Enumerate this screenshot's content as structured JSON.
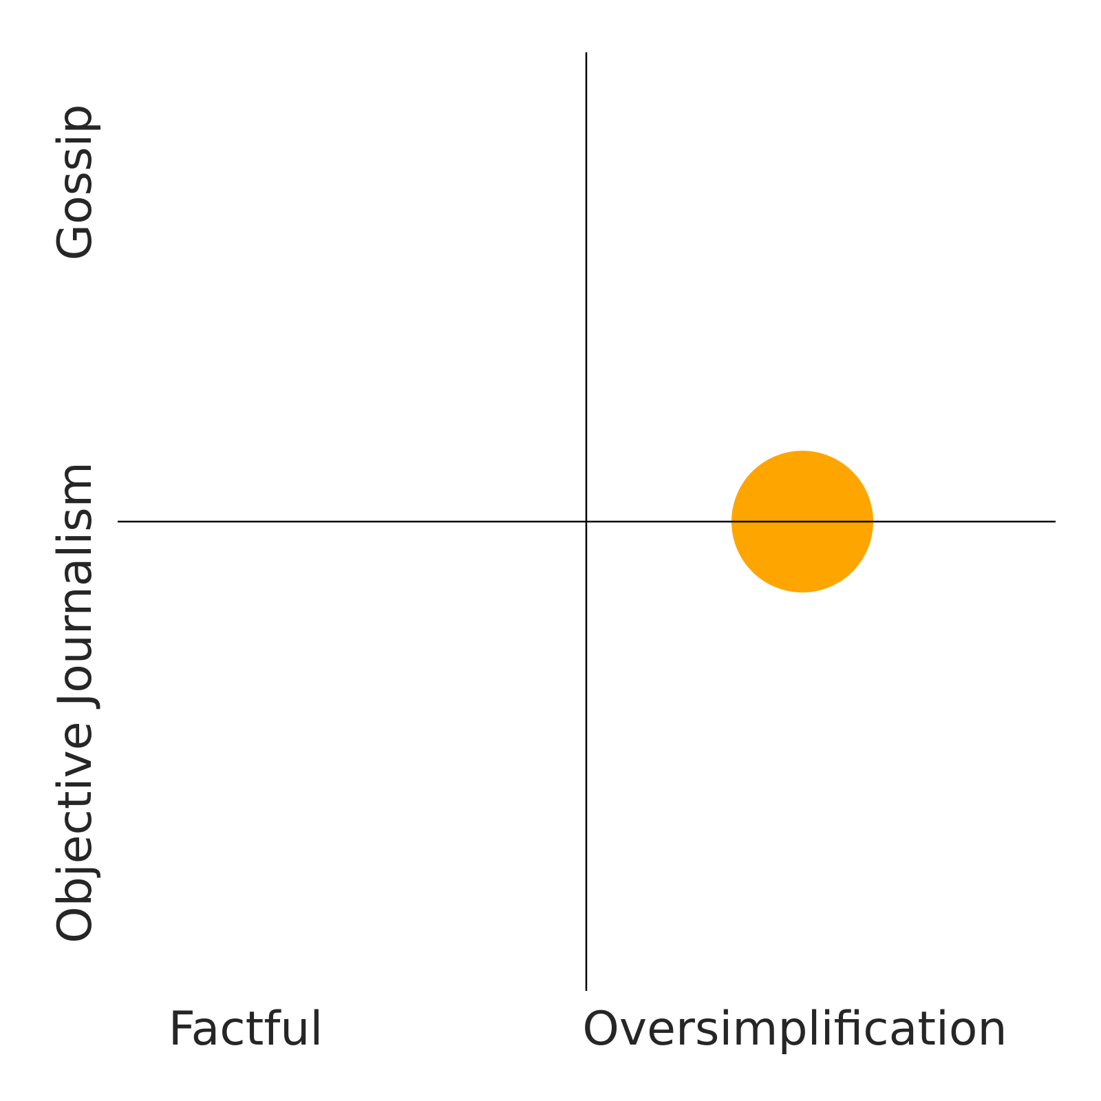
{
  "chart_data": {
    "type": "scatter",
    "title": "",
    "xlim": [
      -1,
      1
    ],
    "ylim": [
      -1,
      1
    ],
    "grid": false,
    "x_labels": {
      "negative": "Factful",
      "positive": "Oversimplification"
    },
    "y_labels": {
      "negative": "Objective Journalism",
      "positive": "Gossip"
    },
    "points": [
      {
        "x": 0.46,
        "y": 0.0,
        "color": "#FFA500"
      }
    ]
  }
}
